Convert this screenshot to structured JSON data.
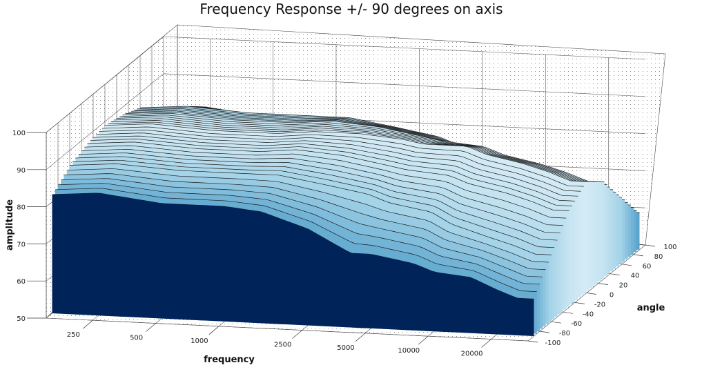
{
  "chart_data": {
    "type": "surface",
    "title": "Frequency Response +/- 90 degrees on axis",
    "xlabel": "frequency",
    "ylabel": "angle",
    "zlabel": "amplitude",
    "x_ticks": [
      "250",
      "500",
      "1000",
      "2500",
      "5000",
      "10000",
      "20000"
    ],
    "y_ticks": [
      "-100",
      "-80",
      "-60",
      "-40",
      "-20",
      "0",
      "20",
      "40",
      "60",
      "80",
      "100"
    ],
    "z_ticks": [
      "50",
      "60",
      "70",
      "80",
      "90",
      "100"
    ],
    "xlim": [
      150,
      30000
    ],
    "ylim": [
      -100,
      100
    ],
    "zlim": [
      50,
      100
    ],
    "grid": true,
    "colormap": [
      "#00235a",
      "#0c5a8f",
      "#4d9cc8",
      "#9fd0e6",
      "#e6f4fa"
    ],
    "x_scale": "log",
    "series": [
      {
        "y": -90,
        "frequency": [
          150,
          250,
          500,
          1000,
          1500,
          2500,
          4000,
          5000,
          8000,
          10000,
          15000,
          20000,
          25000
        ],
        "amplitude": [
          82,
          83,
          81,
          81,
          80,
          76,
          70,
          70,
          68,
          66,
          65,
          62,
          60
        ]
      },
      {
        "y": -60,
        "frequency": [
          150,
          250,
          500,
          1000,
          1500,
          2500,
          4000,
          5000,
          8000,
          10000,
          15000,
          20000,
          25000
        ],
        "amplitude": [
          86,
          87,
          86,
          86,
          86,
          84,
          82,
          80,
          78,
          75,
          72,
          70,
          68
        ]
      },
      {
        "y": -30,
        "frequency": [
          150,
          250,
          500,
          1000,
          1500,
          2500,
          4000,
          5000,
          8000,
          10000,
          15000,
          20000,
          25000
        ],
        "amplitude": [
          88,
          89,
          88,
          88,
          89,
          88,
          86,
          85,
          84,
          82,
          80,
          78,
          76
        ]
      },
      {
        "y": 0,
        "frequency": [
          150,
          250,
          500,
          1000,
          1500,
          2500,
          4000,
          5000,
          8000,
          10000,
          15000,
          20000,
          25000
        ],
        "amplitude": [
          89,
          90,
          89,
          89,
          90,
          90,
          89,
          88,
          88,
          86,
          84,
          82,
          80
        ]
      },
      {
        "y": 30,
        "frequency": [
          150,
          250,
          500,
          1000,
          1500,
          2500,
          4000,
          5000,
          8000,
          10000,
          15000,
          20000,
          25000
        ],
        "amplitude": [
          88,
          89,
          88,
          88,
          89,
          88,
          86,
          85,
          84,
          82,
          80,
          78,
          76
        ]
      },
      {
        "y": 60,
        "frequency": [
          150,
          250,
          500,
          1000,
          1500,
          2500,
          4000,
          5000,
          8000,
          10000,
          15000,
          20000,
          25000
        ],
        "amplitude": [
          86,
          87,
          86,
          86,
          86,
          84,
          82,
          80,
          78,
          75,
          72,
          70,
          68
        ]
      },
      {
        "y": 90,
        "frequency": [
          150,
          250,
          500,
          1000,
          1500,
          2500,
          4000,
          5000,
          8000,
          10000,
          15000,
          20000,
          25000
        ],
        "amplitude": [
          82,
          83,
          81,
          81,
          80,
          76,
          70,
          70,
          68,
          66,
          65,
          62,
          60
        ]
      }
    ]
  }
}
